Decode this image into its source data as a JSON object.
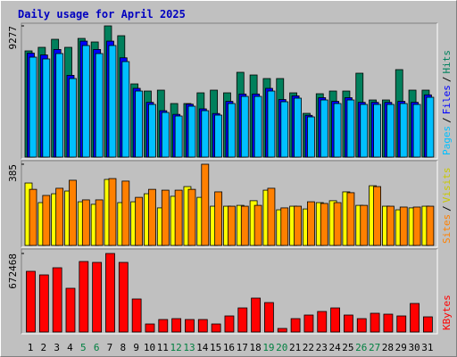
{
  "chart_data": [
    {
      "type": "bar",
      "title": "Daily usage for April 2025",
      "legend_separator": "/",
      "ylim": [
        0,
        9277
      ],
      "yticks": [
        9277
      ],
      "series": [
        {
          "name": "Hits",
          "color": "#00805c",
          "values": [
            7509,
            7761,
            8329,
            7761,
            8392,
            8140,
            9277,
            8582,
            5174,
            4669,
            4733,
            3786,
            3786,
            4543,
            4733,
            4543,
            5995,
            5805,
            5553,
            5553,
            4543,
            3092,
            4480,
            4669,
            4669,
            5931,
            4038,
            4038,
            6184,
            4733,
            4733
          ]
        },
        {
          "name": "Files",
          "color": "#0000ff",
          "values": [
            7350,
            7220,
            7610,
            5780,
            8200,
            7610,
            8200,
            7020,
            4860,
            3870,
            3280,
            3020,
            3740,
            3410,
            3080,
            3940,
            4460,
            4460,
            4860,
            4070,
            4330,
            2950,
            4200,
            3940,
            4200,
            3870,
            3870,
            3870,
            3940,
            3870,
            4400
          ]
        },
        {
          "name": "Pages",
          "color": "#00c0ff",
          "values": [
            7067,
            6941,
            7320,
            5553,
            7888,
            7320,
            7888,
            6752,
            4669,
            3723,
            3155,
            2903,
            3597,
            3281,
            2966,
            3786,
            4291,
            4291,
            4669,
            3912,
            4165,
            2840,
            4038,
            3786,
            4038,
            3723,
            3723,
            3723,
            3786,
            3723,
            4228
          ]
        }
      ]
    },
    {
      "type": "bar",
      "legend_separator": "/",
      "ylim": [
        0,
        385
      ],
      "yticks": [
        385
      ],
      "series": [
        {
          "name": "Visits",
          "color": "#ffff00",
          "legend_color": "#c8c800",
          "values": [
            296,
            203,
            245,
            258,
            207,
            195,
            313,
            203,
            207,
            245,
            178,
            233,
            279,
            228,
            186,
            186,
            190,
            212,
            262,
            169,
            186,
            173,
            203,
            212,
            254,
            190,
            283,
            186,
            169,
            178,
            186
          ]
        },
        {
          "name": "Sites",
          "color": "#ff8000",
          "values": [
            266,
            237,
            271,
            309,
            216,
            216,
            317,
            305,
            228,
            266,
            262,
            262,
            266,
            385,
            254,
            186,
            186,
            190,
            271,
            178,
            186,
            207,
            199,
            203,
            250,
            190,
            279,
            186,
            182,
            182,
            186
          ]
        }
      ]
    },
    {
      "type": "bar",
      "ylim": [
        0,
        672468
      ],
      "yticks": [
        672468
      ],
      "categories": [
        "1",
        "2",
        "3",
        "4",
        "5",
        "6",
        "7",
        "8",
        "9",
        "10",
        "11",
        "12",
        "13",
        "14",
        "15",
        "16",
        "17",
        "18",
        "19",
        "20",
        "21",
        "22",
        "23",
        "24",
        "25",
        "26",
        "27",
        "28",
        "29",
        "30",
        "31"
      ],
      "category_colors": [
        "#000000",
        "#000000",
        "#000000",
        "#000000",
        "#008040",
        "#008040",
        "#000000",
        "#000000",
        "#000000",
        "#000000",
        "#000000",
        "#008040",
        "#008040",
        "#000000",
        "#000000",
        "#000000",
        "#000000",
        "#000000",
        "#008040",
        "#008040",
        "#000000",
        "#000000",
        "#000000",
        "#000000",
        "#000000",
        "#008040",
        "#008040",
        "#000000",
        "#000000",
        "#000000",
        "#000000"
      ],
      "series": [
        {
          "name": "KBytes",
          "color": "#ff0000",
          "values": [
            519700,
            489100,
            550200,
            374500,
            603700,
            596100,
            672468,
            596100,
            282800,
            68800,
            107000,
            114600,
            107000,
            107000,
            68800,
            137600,
            206300,
            290400,
            252200,
            30600,
            114600,
            145200,
            175800,
            206300,
            145200,
            114600,
            160500,
            152800,
            137600,
            244500,
            129900
          ]
        }
      ]
    }
  ]
}
